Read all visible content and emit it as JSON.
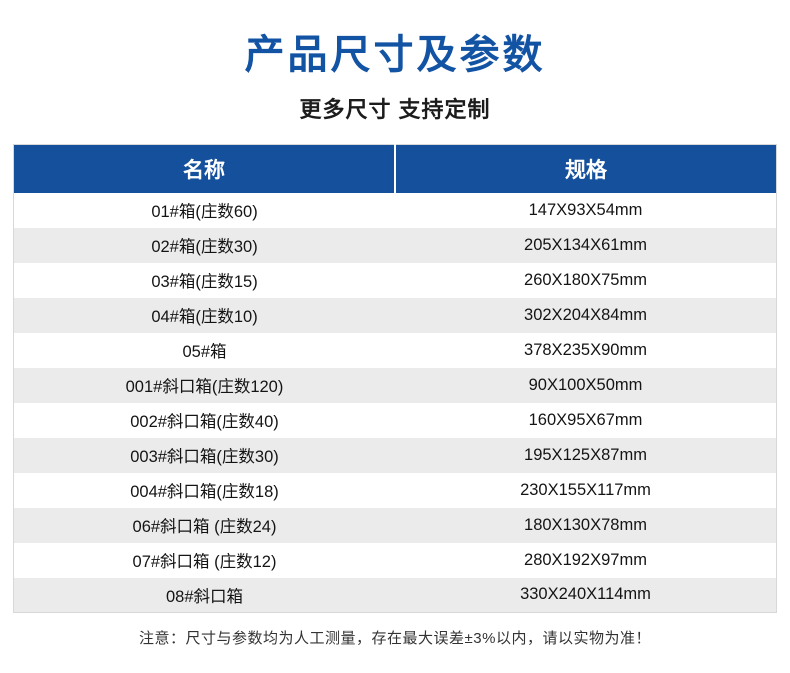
{
  "page": {
    "title": "产品尺寸及参数",
    "subtitle": "更多尺寸 支持定制",
    "note": "注意：尺寸与参数均为人工测量，存在最大误差±3%以内，请以实物为准！"
  },
  "colors": {
    "accent_blue": "#1253a4",
    "table_header_bg": "#15509d",
    "row_alt_bg": "#ebebeb"
  },
  "table": {
    "headers": [
      "名称",
      "规格"
    ],
    "rows": [
      {
        "name": "01#箱(庄数60)",
        "spec": "147X93X54mm"
      },
      {
        "name": "02#箱(庄数30)",
        "spec": "205X134X61mm"
      },
      {
        "name": "03#箱(庄数15)",
        "spec": "260X180X75mm"
      },
      {
        "name": "04#箱(庄数10)",
        "spec": "302X204X84mm"
      },
      {
        "name": "05#箱",
        "spec": "378X235X90mm"
      },
      {
        "name": "001#斜口箱(庄数120)",
        "spec": "90X100X50mm"
      },
      {
        "name": "002#斜口箱(庄数40)",
        "spec": "160X95X67mm"
      },
      {
        "name": "003#斜口箱(庄数30)",
        "spec": "195X125X87mm"
      },
      {
        "name": "004#斜口箱(庄数18)",
        "spec": "230X155X117mm"
      },
      {
        "name": "06#斜口箱 (庄数24)",
        "spec": "180X130X78mm"
      },
      {
        "name": "07#斜口箱 (庄数12)",
        "spec": "280X192X97mm"
      },
      {
        "name": "08#斜口箱",
        "spec": "330X240X114mm"
      }
    ]
  }
}
